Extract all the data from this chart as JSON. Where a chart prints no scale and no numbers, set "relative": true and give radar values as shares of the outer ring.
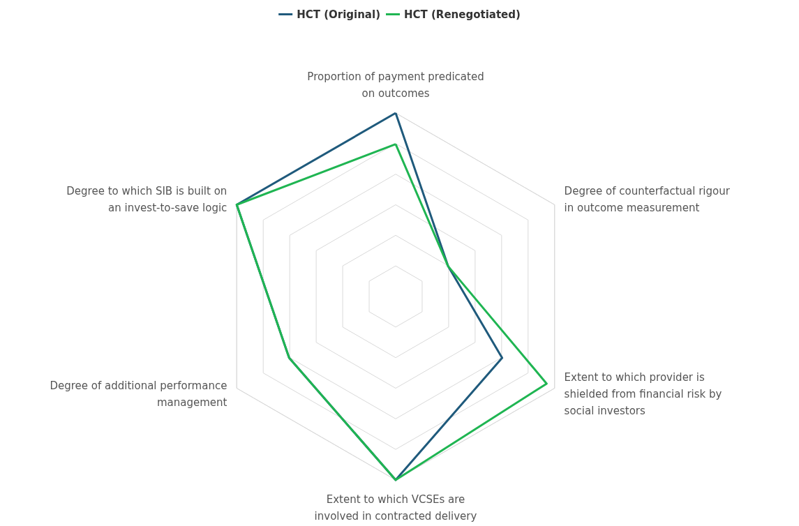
{
  "chart_data": {
    "type": "radar",
    "relative": true,
    "legend": "top",
    "marker": "none",
    "line_style": "solid",
    "grid": true,
    "categories": [
      "Proportion of payment predicated on outcomes",
      "Degree of counterfactual rigour in outcome measurement",
      "Extent to which provider is shielded from financial risk by social investors",
      "Extent to which VCSEs are involved in contracted delivery",
      "Degree of additional performance management",
      "Degree to which SIB is built on an invest-to-save logic"
    ],
    "series": [
      {
        "name": "HCT (Original)",
        "color": "#1f5a7c",
        "values": [
          1,
          0.33,
          0.67,
          1,
          0.67,
          1
        ]
      },
      {
        "name": "HCT (Renegotiated)",
        "color": "#1fb552",
        "values": [
          0.83,
          0.33,
          0.95,
          1,
          0.67,
          1
        ]
      }
    ]
  }
}
